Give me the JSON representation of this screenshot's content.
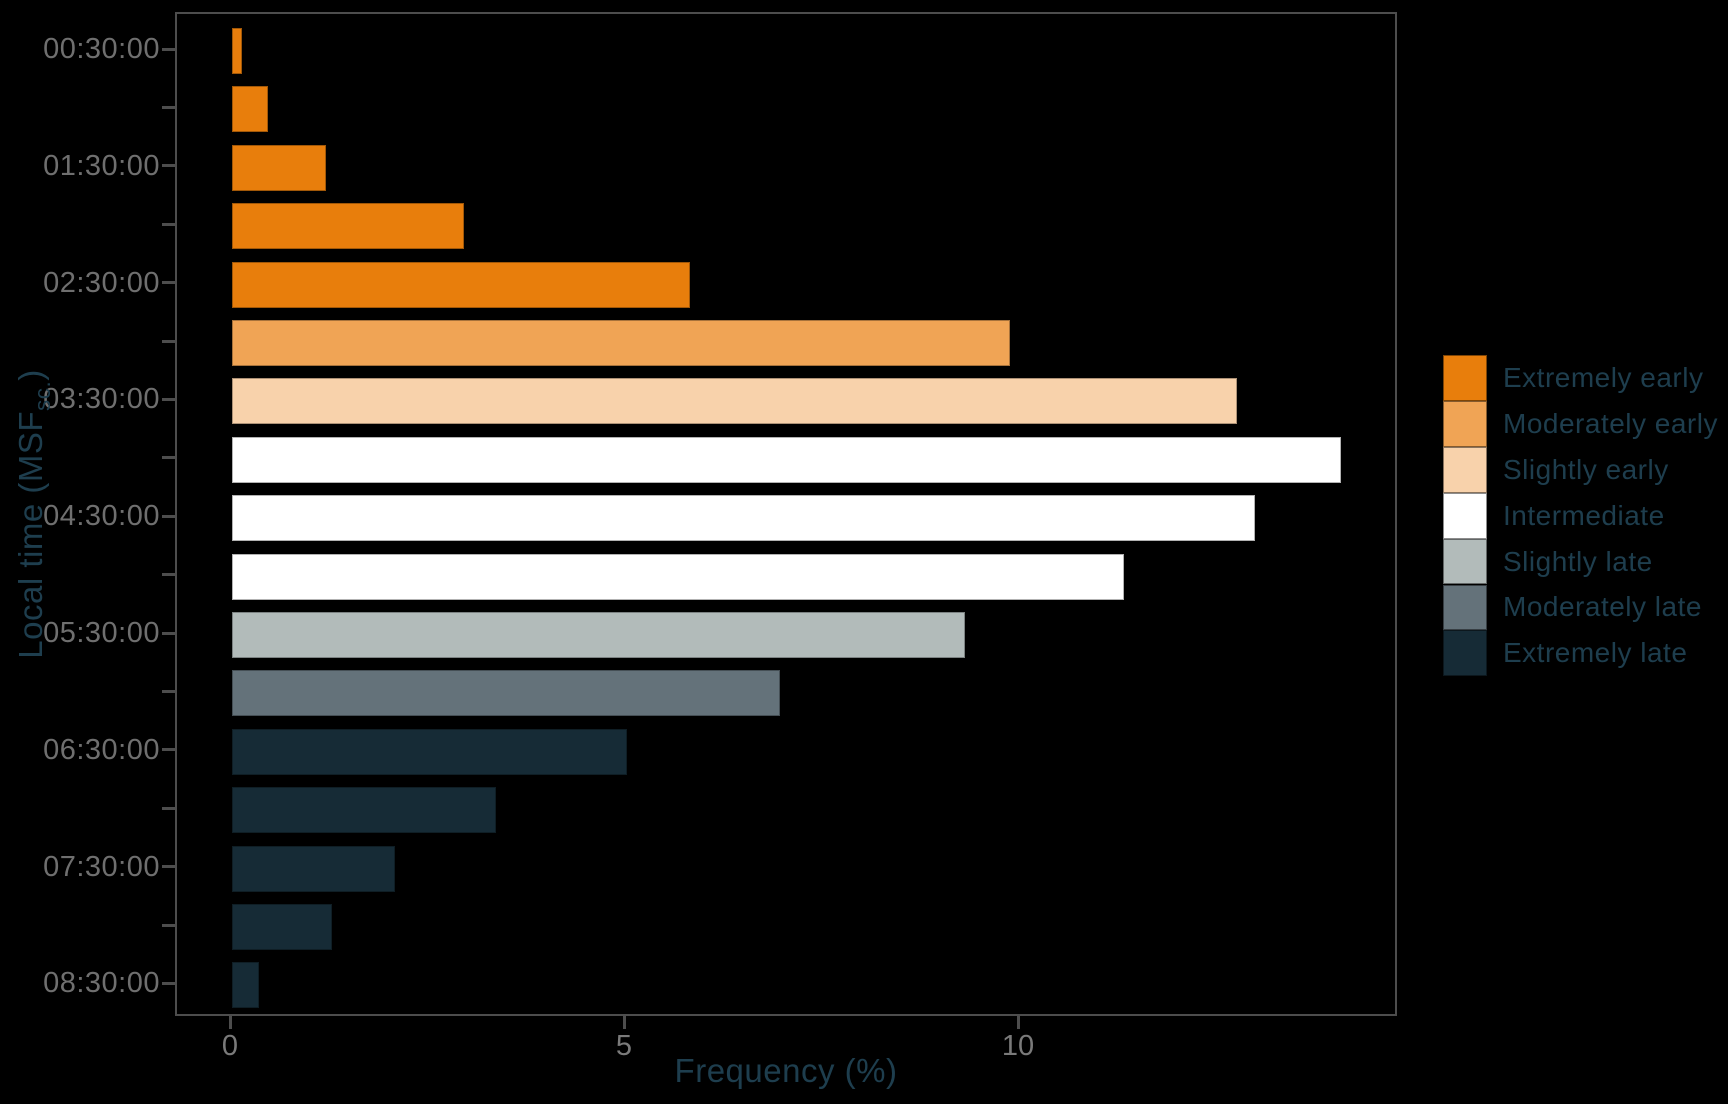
{
  "figure": {
    "background_color": "#000000",
    "spine_color": "#4d4d4d",
    "tick_label_color": "#6f6f6f",
    "label_color": "#1e3e4e"
  },
  "chart_data": {
    "type": "bar",
    "orientation": "horizontal",
    "title": "",
    "xlabel": "Frequency (%)",
    "ylabel": {
      "prefix": "Local time (MSF",
      "subscript": "sc.",
      "suffix": ")"
    },
    "x_ticks": [
      "0",
      "5",
      "10"
    ],
    "x_tick_values": [
      0,
      5,
      10
    ],
    "xlim": [
      -0.7,
      14.8
    ],
    "grid": false,
    "legend_position": "right",
    "bins": [
      {
        "tick_label": "00:30:00",
        "value": 0.13,
        "category": "Extremely early"
      },
      {
        "tick_label": "",
        "value": 0.46,
        "category": "Extremely early"
      },
      {
        "tick_label": "01:30:00",
        "value": 1.19,
        "category": "Extremely early"
      },
      {
        "tick_label": "",
        "value": 2.95,
        "category": "Extremely early"
      },
      {
        "tick_label": "02:30:00",
        "value": 5.81,
        "category": "Extremely early"
      },
      {
        "tick_label": "",
        "value": 9.87,
        "category": "Moderately early"
      },
      {
        "tick_label": "03:30:00",
        "value": 12.76,
        "category": "Slightly early"
      },
      {
        "tick_label": "",
        "value": 14.07,
        "category": "Intermediate"
      },
      {
        "tick_label": "04:30:00",
        "value": 12.98,
        "category": "Intermediate"
      },
      {
        "tick_label": "",
        "value": 11.32,
        "category": "Intermediate"
      },
      {
        "tick_label": "05:30:00",
        "value": 9.3,
        "category": "Slightly late"
      },
      {
        "tick_label": "",
        "value": 6.96,
        "category": "Moderately late"
      },
      {
        "tick_label": "06:30:00",
        "value": 5.01,
        "category": "Extremely late"
      },
      {
        "tick_label": "",
        "value": 3.35,
        "category": "Extremely late"
      },
      {
        "tick_label": "07:30:00",
        "value": 2.07,
        "category": "Extremely late"
      },
      {
        "tick_label": "",
        "value": 1.27,
        "category": "Extremely late"
      },
      {
        "tick_label": "08:30:00",
        "value": 0.34,
        "category": "Extremely late"
      }
    ],
    "legend": [
      {
        "label": "Extremely early",
        "color": "#e87e0c"
      },
      {
        "label": "Moderately early",
        "color": "#f0a455"
      },
      {
        "label": "Slightly early",
        "color": "#f8d2ab"
      },
      {
        "label": "Intermediate",
        "color": "#ffffff"
      },
      {
        "label": "Slightly late",
        "color": "#b2bbba"
      },
      {
        "label": "Moderately late",
        "color": "#64727a"
      },
      {
        "label": "Extremely late",
        "color": "#162b36"
      }
    ]
  }
}
